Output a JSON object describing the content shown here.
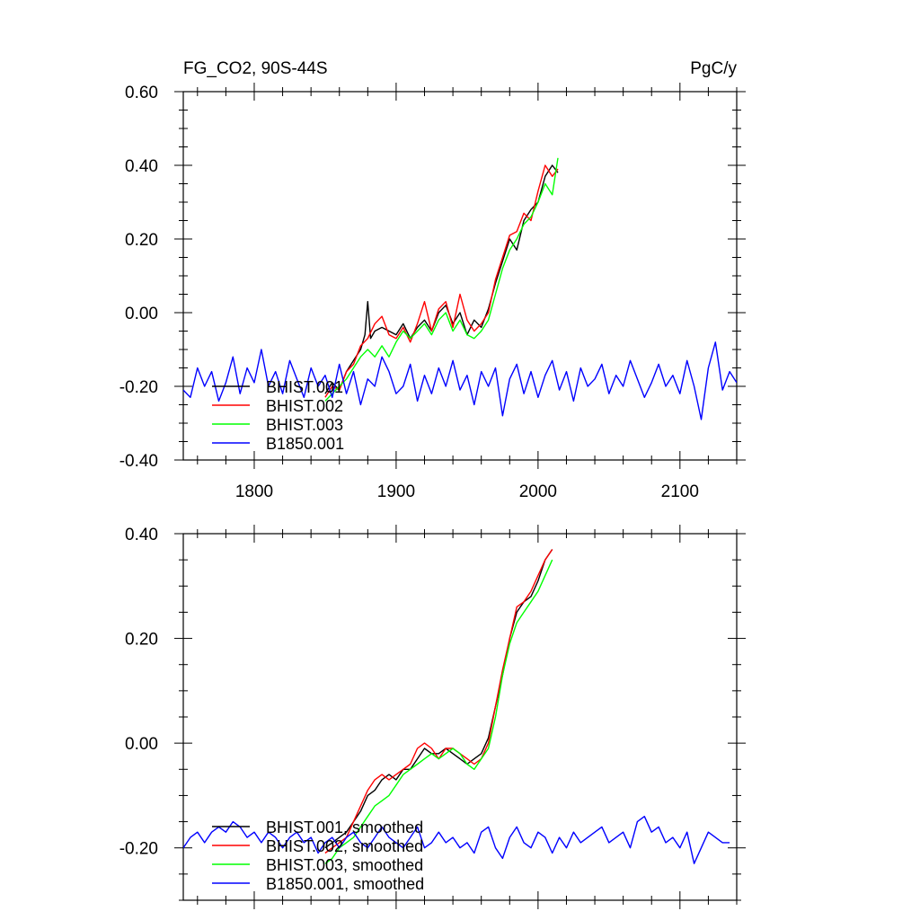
{
  "chart_data": [
    {
      "type": "line",
      "title_left": "FG_CO2, 90S-44S",
      "title_right": "PgC/y",
      "xlim": [
        1750,
        2140
      ],
      "ylim": [
        -0.4,
        0.6
      ],
      "x_ticks": [
        1800,
        1900,
        2000,
        2100
      ],
      "x_tick_labels": [
        "1800",
        "1900",
        "2000",
        "2100"
      ],
      "y_ticks": [
        -0.4,
        -0.2,
        0.0,
        0.2,
        0.4,
        0.6
      ],
      "y_tick_labels": [
        "-0.40",
        "-0.20",
        "0.00",
        "0.20",
        "0.40",
        "0.60"
      ],
      "legend_position": "bottom-left",
      "series": [
        {
          "name": "BHIST.001",
          "color": "#000000",
          "x": [
            1850,
            1855,
            1860,
            1865,
            1870,
            1875,
            1878,
            1880,
            1882,
            1885,
            1890,
            1895,
            1900,
            1905,
            1910,
            1915,
            1920,
            1925,
            1930,
            1935,
            1940,
            1945,
            1950,
            1955,
            1960,
            1965,
            1970,
            1975,
            1980,
            1985,
            1990,
            1995,
            2000,
            2005,
            2010,
            2014
          ],
          "y": [
            -0.22,
            -0.19,
            -0.21,
            -0.16,
            -0.13,
            -0.1,
            -0.06,
            0.03,
            -0.07,
            -0.05,
            -0.04,
            -0.05,
            -0.06,
            -0.03,
            -0.07,
            -0.04,
            -0.02,
            -0.05,
            0.0,
            0.02,
            -0.03,
            0.0,
            -0.06,
            -0.02,
            -0.04,
            0.01,
            0.08,
            0.14,
            0.2,
            0.17,
            0.25,
            0.28,
            0.3,
            0.37,
            0.4,
            0.38
          ]
        },
        {
          "name": "BHIST.002",
          "color": "#ff0000",
          "x": [
            1850,
            1855,
            1860,
            1865,
            1870,
            1875,
            1880,
            1885,
            1890,
            1895,
            1900,
            1905,
            1910,
            1915,
            1920,
            1925,
            1930,
            1935,
            1940,
            1945,
            1950,
            1955,
            1960,
            1965,
            1970,
            1975,
            1980,
            1985,
            1990,
            1995,
            2000,
            2005,
            2010,
            2014
          ],
          "y": [
            -0.23,
            -0.2,
            -0.21,
            -0.16,
            -0.14,
            -0.09,
            -0.07,
            -0.03,
            -0.01,
            -0.06,
            -0.07,
            -0.04,
            -0.08,
            -0.03,
            0.03,
            -0.05,
            0.01,
            0.03,
            -0.04,
            0.05,
            -0.02,
            -0.05,
            -0.03,
            0.0,
            0.09,
            0.15,
            0.21,
            0.22,
            0.27,
            0.25,
            0.33,
            0.4,
            0.37,
            0.39
          ]
        },
        {
          "name": "BHIST.003",
          "color": "#00ff00",
          "x": [
            1850,
            1855,
            1860,
            1865,
            1870,
            1875,
            1880,
            1885,
            1890,
            1895,
            1900,
            1905,
            1910,
            1915,
            1920,
            1925,
            1930,
            1935,
            1940,
            1945,
            1950,
            1955,
            1960,
            1965,
            1970,
            1975,
            1980,
            1985,
            1990,
            1995,
            2000,
            2005,
            2010,
            2014
          ],
          "y": [
            -0.24,
            -0.22,
            -0.2,
            -0.18,
            -0.15,
            -0.12,
            -0.1,
            -0.12,
            -0.09,
            -0.12,
            -0.08,
            -0.05,
            -0.07,
            -0.05,
            -0.03,
            -0.06,
            -0.02,
            0.0,
            -0.05,
            -0.02,
            -0.06,
            -0.07,
            -0.05,
            -0.02,
            0.05,
            0.12,
            0.17,
            0.2,
            0.24,
            0.26,
            0.3,
            0.35,
            0.32,
            0.42
          ]
        },
        {
          "name": "B1850.001",
          "color": "#0000ff",
          "x": [
            1750,
            1755,
            1760,
            1765,
            1770,
            1775,
            1780,
            1785,
            1790,
            1795,
            1800,
            1805,
            1810,
            1815,
            1820,
            1825,
            1830,
            1835,
            1840,
            1845,
            1850,
            1855,
            1860,
            1865,
            1870,
            1875,
            1880,
            1885,
            1890,
            1895,
            1900,
            1905,
            1910,
            1915,
            1920,
            1925,
            1930,
            1935,
            1940,
            1945,
            1950,
            1955,
            1960,
            1965,
            1970,
            1975,
            1980,
            1985,
            1990,
            1995,
            2000,
            2005,
            2010,
            2015,
            2020,
            2025,
            2030,
            2035,
            2040,
            2045,
            2050,
            2055,
            2060,
            2065,
            2070,
            2075,
            2080,
            2085,
            2090,
            2095,
            2100,
            2105,
            2110,
            2115,
            2120,
            2125,
            2130,
            2135,
            2140
          ],
          "y": [
            -0.21,
            -0.23,
            -0.15,
            -0.2,
            -0.16,
            -0.24,
            -0.19,
            -0.12,
            -0.22,
            -0.15,
            -0.19,
            -0.1,
            -0.2,
            -0.16,
            -0.22,
            -0.13,
            -0.18,
            -0.23,
            -0.15,
            -0.2,
            -0.17,
            -0.23,
            -0.14,
            -0.22,
            -0.16,
            -0.25,
            -0.18,
            -0.2,
            -0.12,
            -0.16,
            -0.22,
            -0.2,
            -0.14,
            -0.24,
            -0.17,
            -0.22,
            -0.15,
            -0.2,
            -0.13,
            -0.21,
            -0.17,
            -0.25,
            -0.16,
            -0.2,
            -0.15,
            -0.28,
            -0.18,
            -0.14,
            -0.22,
            -0.16,
            -0.23,
            -0.17,
            -0.13,
            -0.21,
            -0.16,
            -0.24,
            -0.15,
            -0.2,
            -0.18,
            -0.14,
            -0.22,
            -0.17,
            -0.2,
            -0.13,
            -0.18,
            -0.23,
            -0.19,
            -0.14,
            -0.2,
            -0.17,
            -0.22,
            -0.13,
            -0.2,
            -0.29,
            -0.15,
            -0.08,
            -0.21,
            -0.16,
            -0.19
          ]
        }
      ]
    },
    {
      "type": "line",
      "xlim": [
        1750,
        2140
      ],
      "ylim": [
        -0.3,
        0.4
      ],
      "x_ticks": [
        1800,
        1900,
        2000,
        2100
      ],
      "y_ticks": [
        -0.2,
        0.0,
        0.2,
        0.4
      ],
      "y_tick_labels": [
        "-0.20",
        "0.00",
        "0.20",
        "0.40"
      ],
      "legend_position": "bottom-left",
      "series": [
        {
          "name": "BHIST.001, smoothed",
          "color": "#000000",
          "x": [
            1850,
            1855,
            1860,
            1865,
            1870,
            1875,
            1880,
            1885,
            1890,
            1895,
            1900,
            1905,
            1910,
            1915,
            1920,
            1925,
            1930,
            1935,
            1940,
            1945,
            1950,
            1955,
            1960,
            1965,
            1970,
            1975,
            1980,
            1985,
            1990,
            1995,
            2000,
            2005,
            2010
          ],
          "y": [
            -0.2,
            -0.19,
            -0.18,
            -0.17,
            -0.15,
            -0.13,
            -0.1,
            -0.09,
            -0.07,
            -0.06,
            -0.07,
            -0.05,
            -0.05,
            -0.03,
            -0.01,
            -0.02,
            -0.02,
            -0.01,
            -0.02,
            -0.03,
            -0.04,
            -0.03,
            -0.02,
            0.01,
            0.07,
            0.13,
            0.2,
            0.25,
            0.27,
            0.28,
            0.31,
            0.35,
            0.37
          ]
        },
        {
          "name": "BHIST.002, smoothed",
          "color": "#ff0000",
          "x": [
            1850,
            1855,
            1860,
            1865,
            1870,
            1875,
            1880,
            1885,
            1890,
            1895,
            1900,
            1905,
            1910,
            1915,
            1920,
            1925,
            1930,
            1935,
            1940,
            1945,
            1950,
            1955,
            1960,
            1965,
            1970,
            1975,
            1980,
            1985,
            1990,
            1995,
            2000,
            2005,
            2010
          ],
          "y": [
            -0.21,
            -0.2,
            -0.19,
            -0.18,
            -0.15,
            -0.12,
            -0.09,
            -0.07,
            -0.06,
            -0.07,
            -0.06,
            -0.05,
            -0.04,
            -0.01,
            0.0,
            -0.01,
            -0.03,
            -0.01,
            -0.01,
            -0.02,
            -0.03,
            -0.04,
            -0.03,
            0.0,
            0.07,
            0.14,
            0.2,
            0.26,
            0.27,
            0.29,
            0.32,
            0.35,
            0.37
          ]
        },
        {
          "name": "BHIST.003, smoothed",
          "color": "#00ff00",
          "x": [
            1850,
            1855,
            1860,
            1865,
            1870,
            1875,
            1880,
            1885,
            1890,
            1895,
            1900,
            1905,
            1910,
            1915,
            1920,
            1925,
            1930,
            1935,
            1940,
            1945,
            1950,
            1955,
            1960,
            1965,
            1970,
            1975,
            1980,
            1985,
            1990,
            1995,
            2000,
            2005,
            2010
          ],
          "y": [
            -0.23,
            -0.22,
            -0.2,
            -0.19,
            -0.18,
            -0.16,
            -0.14,
            -0.12,
            -0.11,
            -0.1,
            -0.08,
            -0.06,
            -0.05,
            -0.04,
            -0.03,
            -0.02,
            -0.03,
            -0.02,
            -0.01,
            -0.02,
            -0.04,
            -0.05,
            -0.03,
            -0.01,
            0.05,
            0.13,
            0.19,
            0.23,
            0.25,
            0.27,
            0.29,
            0.32,
            0.35
          ]
        },
        {
          "name": "B1850.001, smoothed",
          "color": "#0000ff",
          "x": [
            1750,
            1755,
            1760,
            1765,
            1770,
            1775,
            1780,
            1785,
            1790,
            1795,
            1800,
            1805,
            1810,
            1815,
            1820,
            1825,
            1830,
            1835,
            1840,
            1845,
            1850,
            1855,
            1860,
            1865,
            1870,
            1875,
            1880,
            1885,
            1890,
            1895,
            1900,
            1905,
            1910,
            1915,
            1920,
            1925,
            1930,
            1935,
            1940,
            1945,
            1950,
            1955,
            1960,
            1965,
            1970,
            1975,
            1980,
            1985,
            1990,
            1995,
            2000,
            2005,
            2010,
            2015,
            2020,
            2025,
            2030,
            2035,
            2040,
            2045,
            2050,
            2055,
            2060,
            2065,
            2070,
            2075,
            2080,
            2085,
            2090,
            2095,
            2100,
            2105,
            2110,
            2115,
            2120,
            2125,
            2130,
            2135
          ],
          "y": [
            -0.2,
            -0.18,
            -0.17,
            -0.19,
            -0.17,
            -0.16,
            -0.17,
            -0.15,
            -0.16,
            -0.18,
            -0.17,
            -0.19,
            -0.17,
            -0.18,
            -0.2,
            -0.18,
            -0.17,
            -0.19,
            -0.18,
            -0.21,
            -0.19,
            -0.18,
            -0.2,
            -0.18,
            -0.17,
            -0.19,
            -0.2,
            -0.18,
            -0.16,
            -0.18,
            -0.19,
            -0.2,
            -0.18,
            -0.16,
            -0.2,
            -0.19,
            -0.17,
            -0.19,
            -0.18,
            -0.2,
            -0.19,
            -0.21,
            -0.17,
            -0.16,
            -0.2,
            -0.22,
            -0.18,
            -0.16,
            -0.19,
            -0.2,
            -0.17,
            -0.18,
            -0.21,
            -0.18,
            -0.2,
            -0.17,
            -0.19,
            -0.18,
            -0.17,
            -0.16,
            -0.19,
            -0.18,
            -0.17,
            -0.2,
            -0.15,
            -0.14,
            -0.17,
            -0.16,
            -0.19,
            -0.18,
            -0.2,
            -0.17,
            -0.23,
            -0.2,
            -0.17,
            -0.18,
            -0.19,
            -0.19
          ]
        }
      ]
    }
  ]
}
